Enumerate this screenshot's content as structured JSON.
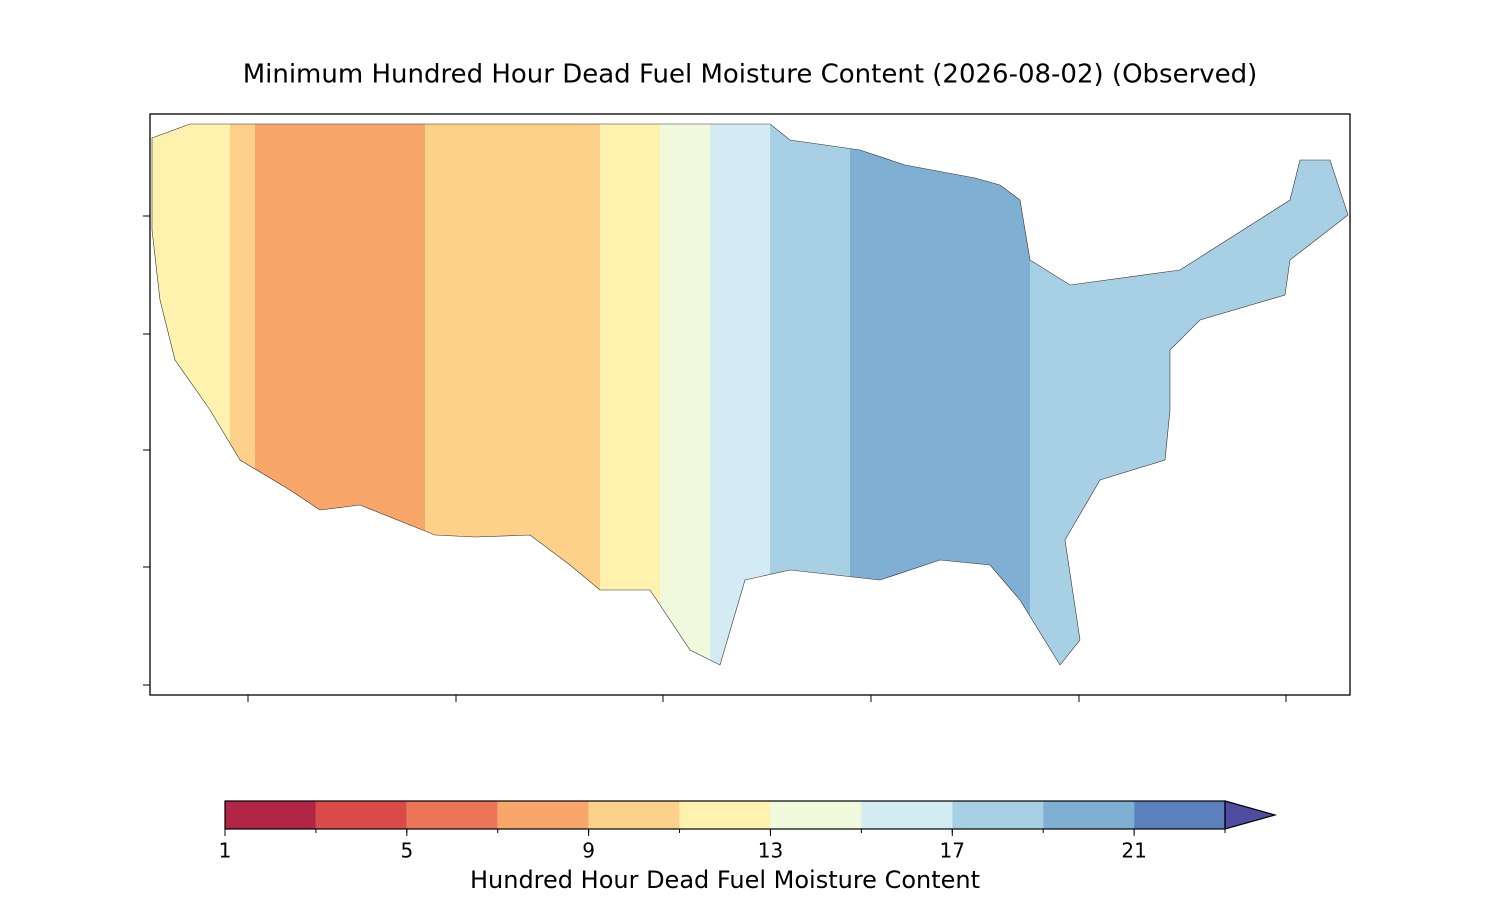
{
  "title": "Minimum Hundred Hour Dead Fuel Moisture Content (2026-08-02) (Observed)",
  "colorbar": {
    "label": "Hundred Hour Dead Fuel Moisture Content",
    "bounds": [
      1,
      3,
      5,
      7,
      9,
      11,
      13,
      15,
      17,
      19,
      21,
      23
    ],
    "colors": [
      "#b22645",
      "#d84b49",
      "#ed7557",
      "#f9a66b",
      "#fdd18a",
      "#fff2ae",
      "#f1f9dc",
      "#d3ecf3",
      "#a7d0e4",
      "#7fb0d3",
      "#5c80bd"
    ],
    "extend_color": "#4f4da0",
    "ticks": [
      1,
      5,
      9,
      13,
      17,
      21
    ]
  }
}
